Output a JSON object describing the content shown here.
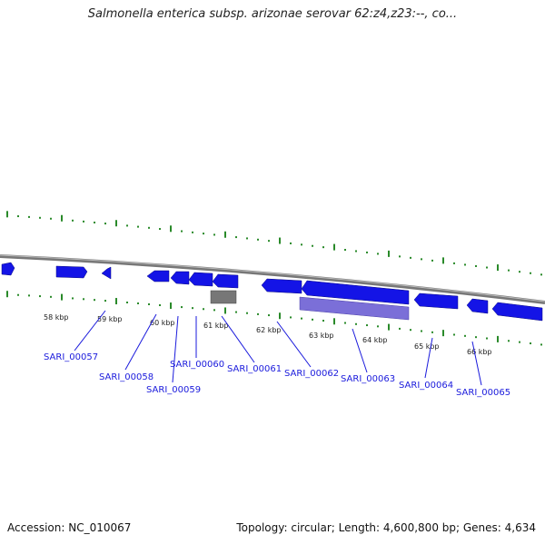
{
  "title": "Salmonella enterica subsp. arizonae serovar 62:z4,z23:--, co...",
  "footer": {
    "accession": "Accession: NC_010067",
    "summary": "Topology: circular; Length: 4,600,800 bp; Genes: 4,634"
  },
  "colors": {
    "gene": "#1414e6",
    "gene_highlight": "#7b6fd8",
    "gray_gene": "#777777",
    "backbone": "#888888",
    "tick": "#2a8a2a",
    "label": "#1a1adc"
  },
  "ticks": [
    {
      "label": "58 kbp"
    },
    {
      "label": "59 kbp"
    },
    {
      "label": "60 kbp"
    },
    {
      "label": "61 kbp"
    },
    {
      "label": "62 kbp"
    },
    {
      "label": "63 kbp"
    },
    {
      "label": "64 kbp"
    },
    {
      "label": "65 kbp"
    },
    {
      "label": "66 kbp"
    }
  ],
  "genes": [
    {
      "id": "SARI_00057"
    },
    {
      "id": "SARI_00058"
    },
    {
      "id": "SARI_00059"
    },
    {
      "id": "SARI_00060"
    },
    {
      "id": "SARI_00061"
    },
    {
      "id": "SARI_00062"
    },
    {
      "id": "SARI_00063"
    },
    {
      "id": "SARI_00064"
    },
    {
      "id": "SARI_00065"
    }
  ]
}
